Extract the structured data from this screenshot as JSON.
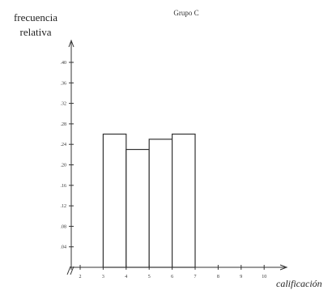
{
  "chart_data": {
    "type": "bar",
    "title": "Grupo C",
    "ylabel_lines": [
      "frecuencia",
      "relativa"
    ],
    "xlabel": "calificación",
    "x_ticks": [
      "2",
      "3",
      "4",
      "5",
      "6",
      "7",
      "8",
      "9",
      "10"
    ],
    "y_ticks": [
      ".04",
      ".08",
      ".12",
      ".16",
      ".20",
      ".24",
      ".28",
      ".32",
      ".36",
      ".40"
    ],
    "ylim": [
      0,
      0.44
    ],
    "xlim": [
      2,
      10
    ],
    "bars": [
      {
        "from": 3,
        "to": 4,
        "value": 0.26
      },
      {
        "from": 4,
        "to": 5,
        "value": 0.23
      },
      {
        "from": 5,
        "to": 6,
        "value": 0.25
      },
      {
        "from": 6,
        "to": 7,
        "value": 0.26
      }
    ],
    "grid": false,
    "axis_break_symbol": "//"
  }
}
